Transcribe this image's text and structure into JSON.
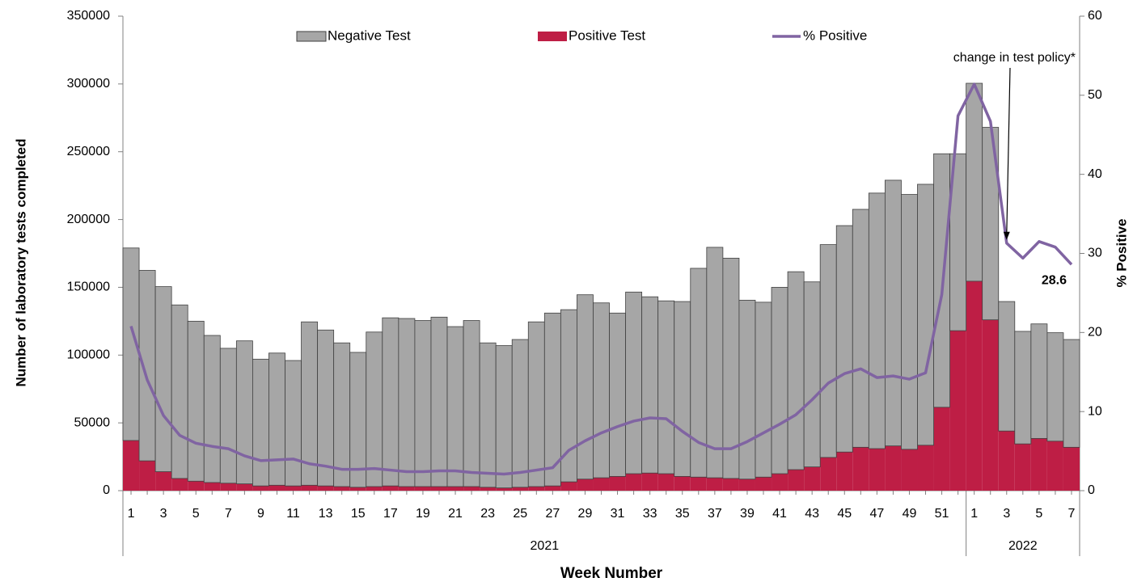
{
  "chart_data": {
    "type": "bar-line",
    "y_title": "Number of laboratory tests completed",
    "y2_title": "% Positive",
    "x_title": "Week Number",
    "categories": [
      "1",
      null,
      "3",
      null,
      "5",
      null,
      "7",
      null,
      "9",
      null,
      "11",
      null,
      "13",
      null,
      "15",
      null,
      "17",
      null,
      "19",
      null,
      "21",
      null,
      "23",
      null,
      "25",
      null,
      "27",
      null,
      "29",
      null,
      "31",
      null,
      "33",
      null,
      "35",
      null,
      "37",
      null,
      "39",
      null,
      "41",
      null,
      "43",
      null,
      "45",
      null,
      "47",
      null,
      "49",
      null,
      "51",
      null,
      "1",
      null,
      "3",
      null,
      "5",
      null,
      "7"
    ],
    "category_years": [
      "2021",
      "2021",
      "2021",
      "2021",
      "2021",
      "2021",
      "2021",
      "2021",
      "2021",
      "2021",
      "2021",
      "2021",
      "2021",
      "2021",
      "2021",
      "2021",
      "2021",
      "2021",
      "2021",
      "2021",
      "2021",
      "2021",
      "2021",
      "2021",
      "2021",
      "2021",
      "2021",
      "2021",
      "2021",
      "2021",
      "2021",
      "2021",
      "2021",
      "2021",
      "2021",
      "2021",
      "2021",
      "2021",
      "2021",
      "2021",
      "2021",
      "2021",
      "2021",
      "2021",
      "2021",
      "2021",
      "2021",
      "2021",
      "2021",
      "2021",
      "2021",
      "2021",
      "2022",
      "2022",
      "2022",
      "2022",
      "2022",
      "2022",
      "2022"
    ],
    "series": [
      {
        "name": "Negative Test",
        "type": "bar",
        "color": "#a6a6a6",
        "values": [
          142000,
          140500,
          136500,
          128000,
          118000,
          108500,
          99500,
          105500,
          93500,
          97500,
          92500,
          120500,
          115000,
          106000,
          99500,
          114000,
          124000,
          124000,
          122500,
          125000,
          118000,
          122500,
          106500,
          105000,
          109000,
          121500,
          127500,
          127000,
          136000,
          129000,
          120500,
          134000,
          130000,
          127500,
          129000,
          154000,
          170000,
          162500,
          132000,
          129000,
          137500,
          146000,
          136500,
          157000,
          167000,
          175500,
          188500,
          196000,
          188000,
          192500,
          187000,
          130500,
          146000,
          142000,
          95500,
          83000,
          84500,
          80000,
          79500
        ]
      },
      {
        "name": "Positive Test",
        "type": "bar",
        "color": "#be1e45",
        "values": [
          37000,
          22000,
          14000,
          9000,
          7000,
          6000,
          5500,
          5000,
          3500,
          4000,
          3500,
          4000,
          3500,
          3000,
          2500,
          3000,
          3500,
          3000,
          3000,
          3000,
          3000,
          3000,
          2500,
          2000,
          2500,
          3000,
          3500,
          6500,
          8500,
          9500,
          10500,
          12500,
          13000,
          12500,
          10500,
          10000,
          9500,
          9000,
          8500,
          10000,
          12500,
          15500,
          17500,
          24500,
          28500,
          32000,
          31000,
          33000,
          30500,
          33500,
          61500,
          118000,
          154500,
          126000,
          44000,
          34500,
          38500,
          36500,
          32000
        ]
      },
      {
        "name": "% Positive",
        "type": "line",
        "axis": "y2",
        "color": "#8064a2",
        "values": [
          20.8,
          14,
          9.5,
          7,
          6,
          5.6,
          5.3,
          4.4,
          3.8,
          3.9,
          4,
          3.4,
          3.1,
          2.7,
          2.7,
          2.8,
          2.6,
          2.4,
          2.4,
          2.5,
          2.5,
          2.3,
          2.2,
          2.1,
          2.3,
          2.6,
          2.9,
          5.1,
          6.3,
          7.3,
          8.1,
          8.8,
          9.2,
          9.1,
          7.5,
          6.1,
          5.3,
          5.3,
          6.2,
          7.3,
          8.4,
          9.6,
          11.5,
          13.6,
          14.8,
          15.4,
          14.3,
          14.5,
          14.1,
          14.9,
          24.8,
          47.4,
          51.4,
          46.7,
          31.3,
          29.4,
          31.5,
          30.8,
          28.6
        ],
        "value_labels": [
          null,
          null,
          null,
          null,
          null,
          null,
          null,
          null,
          null,
          null,
          null,
          null,
          null,
          null,
          null,
          null,
          null,
          null,
          null,
          null,
          null,
          null,
          null,
          null,
          null,
          null,
          null,
          null,
          null,
          null,
          null,
          null,
          null,
          null,
          null,
          null,
          null,
          null,
          null,
          null,
          null,
          null,
          null,
          null,
          null,
          null,
          null,
          null,
          null,
          null,
          null,
          null,
          null,
          null,
          null,
          null,
          null,
          null,
          "28.6"
        ]
      }
    ],
    "annotation": "change in test policy*",
    "ylim": [
      0,
      350000
    ],
    "yticks": [
      0,
      50000,
      100000,
      150000,
      200000,
      250000,
      300000,
      350000
    ],
    "y2lim": [
      0,
      60
    ],
    "y2ticks": [
      0,
      10,
      20,
      30,
      40,
      50,
      60
    ],
    "grid": false,
    "legend": "top"
  }
}
